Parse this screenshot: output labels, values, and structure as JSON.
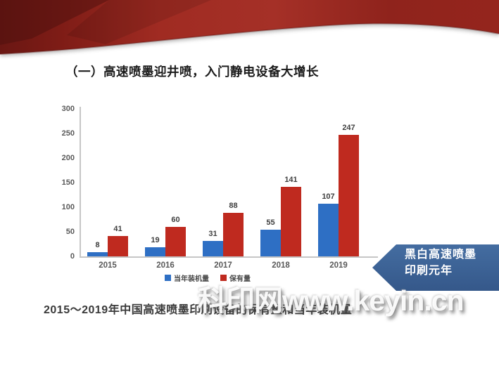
{
  "slide": {
    "title": "（一）高速喷墨迎井喷，入门静电设备大增长",
    "caption": "2015～2019年中国高速喷墨印刷设备的保有量和当年装机量",
    "watermark": "科印网www.keyin.cn"
  },
  "callout": {
    "line1": "黑白高速喷墨",
    "line2": "印刷元年",
    "color": "#3d6398"
  },
  "chart_data": {
    "type": "bar",
    "title": "",
    "xlabel": "",
    "ylabel": "",
    "categories": [
      "2015",
      "2016",
      "2017",
      "2018",
      "2019"
    ],
    "series": [
      {
        "name": "当年装机量",
        "color": "#2e6fc4",
        "values": [
          8,
          19,
          31,
          55,
          107
        ]
      },
      {
        "name": "保有量",
        "color": "#bf2a1f",
        "values": [
          41,
          60,
          88,
          141,
          247
        ]
      }
    ],
    "ylim": [
      0,
      300
    ],
    "yticks": [
      0,
      50,
      100,
      150,
      200,
      250,
      300
    ],
    "grid": false,
    "legend_position": "bottom"
  },
  "colors": {
    "ribbon_dark": "#5e1410",
    "ribbon_main": "#9e2b22",
    "axis": "#c6c6c6",
    "tick_text": "#595959"
  }
}
